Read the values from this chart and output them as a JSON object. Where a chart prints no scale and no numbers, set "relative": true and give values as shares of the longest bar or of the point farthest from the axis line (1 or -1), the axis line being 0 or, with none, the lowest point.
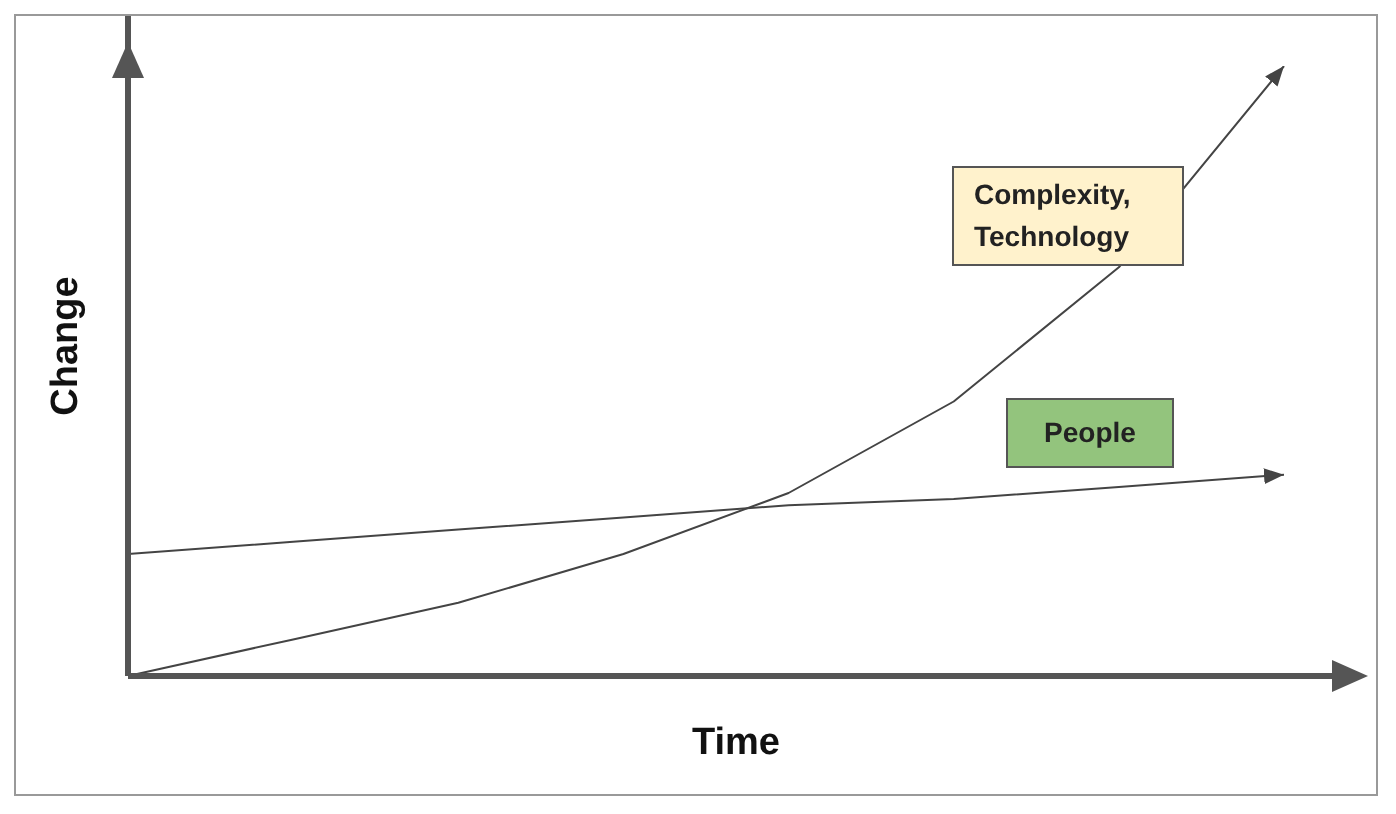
{
  "chart_data": {
    "type": "line",
    "relative": true,
    "xlabel": "Time",
    "ylabel": "Change",
    "tick_labels": false,
    "categories": [
      null,
      null,
      null,
      null,
      null,
      null,
      null,
      null
    ],
    "series": [
      {
        "name": "Complexity, Technology",
        "color": "#444444",
        "values": [
          0,
          0.06,
          0.12,
          0.2,
          0.3,
          0.45,
          0.67,
          1
        ]
      },
      {
        "name": "People",
        "color": "#444444",
        "values": [
          0.2,
          0.22,
          0.24,
          0.26,
          0.28,
          0.29,
          0.31,
          0.33
        ]
      }
    ]
  }
}
